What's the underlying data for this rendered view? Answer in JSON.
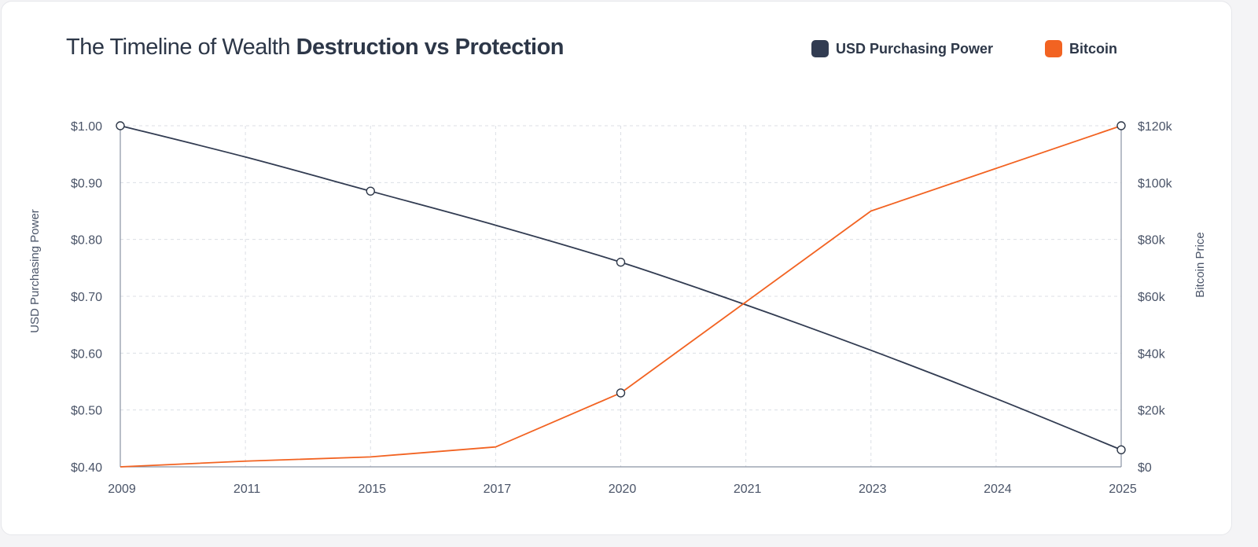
{
  "title": {
    "light": "The Timeline of Wealth",
    "bold": "Destruction vs Protection"
  },
  "legend": [
    {
      "label": "USD Purchasing Power",
      "color": "#323c52"
    },
    {
      "label": "Bitcoin",
      "color": "#f26322"
    }
  ],
  "chart_data": {
    "type": "line",
    "x": [
      "2009",
      "2011",
      "2015",
      "2017",
      "2020",
      "2021",
      "2023",
      "2024",
      "2025"
    ],
    "y_left": {
      "label": "USD Purchasing Power",
      "range": [
        0.4,
        1.0
      ],
      "ticks": [
        "$1.00",
        "$0.90",
        "$0.80",
        "$0.70",
        "$0.60",
        "$0.50",
        "$0.40"
      ]
    },
    "y_right": {
      "label": "Bitcoin Price",
      "range": [
        0,
        120000
      ],
      "ticks": [
        "$120k",
        "$100k",
        "$80k",
        "$60k",
        "$40k",
        "$20k",
        "$0"
      ]
    },
    "series": [
      {
        "name": "USD Purchasing Power",
        "axis": "left",
        "color": "#323c52",
        "values": [
          1.0,
          0.945,
          0.885,
          0.825,
          0.76,
          0.685,
          0.605,
          0.52,
          0.43
        ],
        "markers": [
          0,
          2,
          4,
          8
        ]
      },
      {
        "name": "Bitcoin",
        "axis": "right",
        "color": "#f26322",
        "values": [
          0,
          2000,
          3500,
          7000,
          26000,
          58000,
          90000,
          105000,
          120000
        ],
        "markers": [
          4,
          8
        ]
      }
    ],
    "grid": true
  }
}
